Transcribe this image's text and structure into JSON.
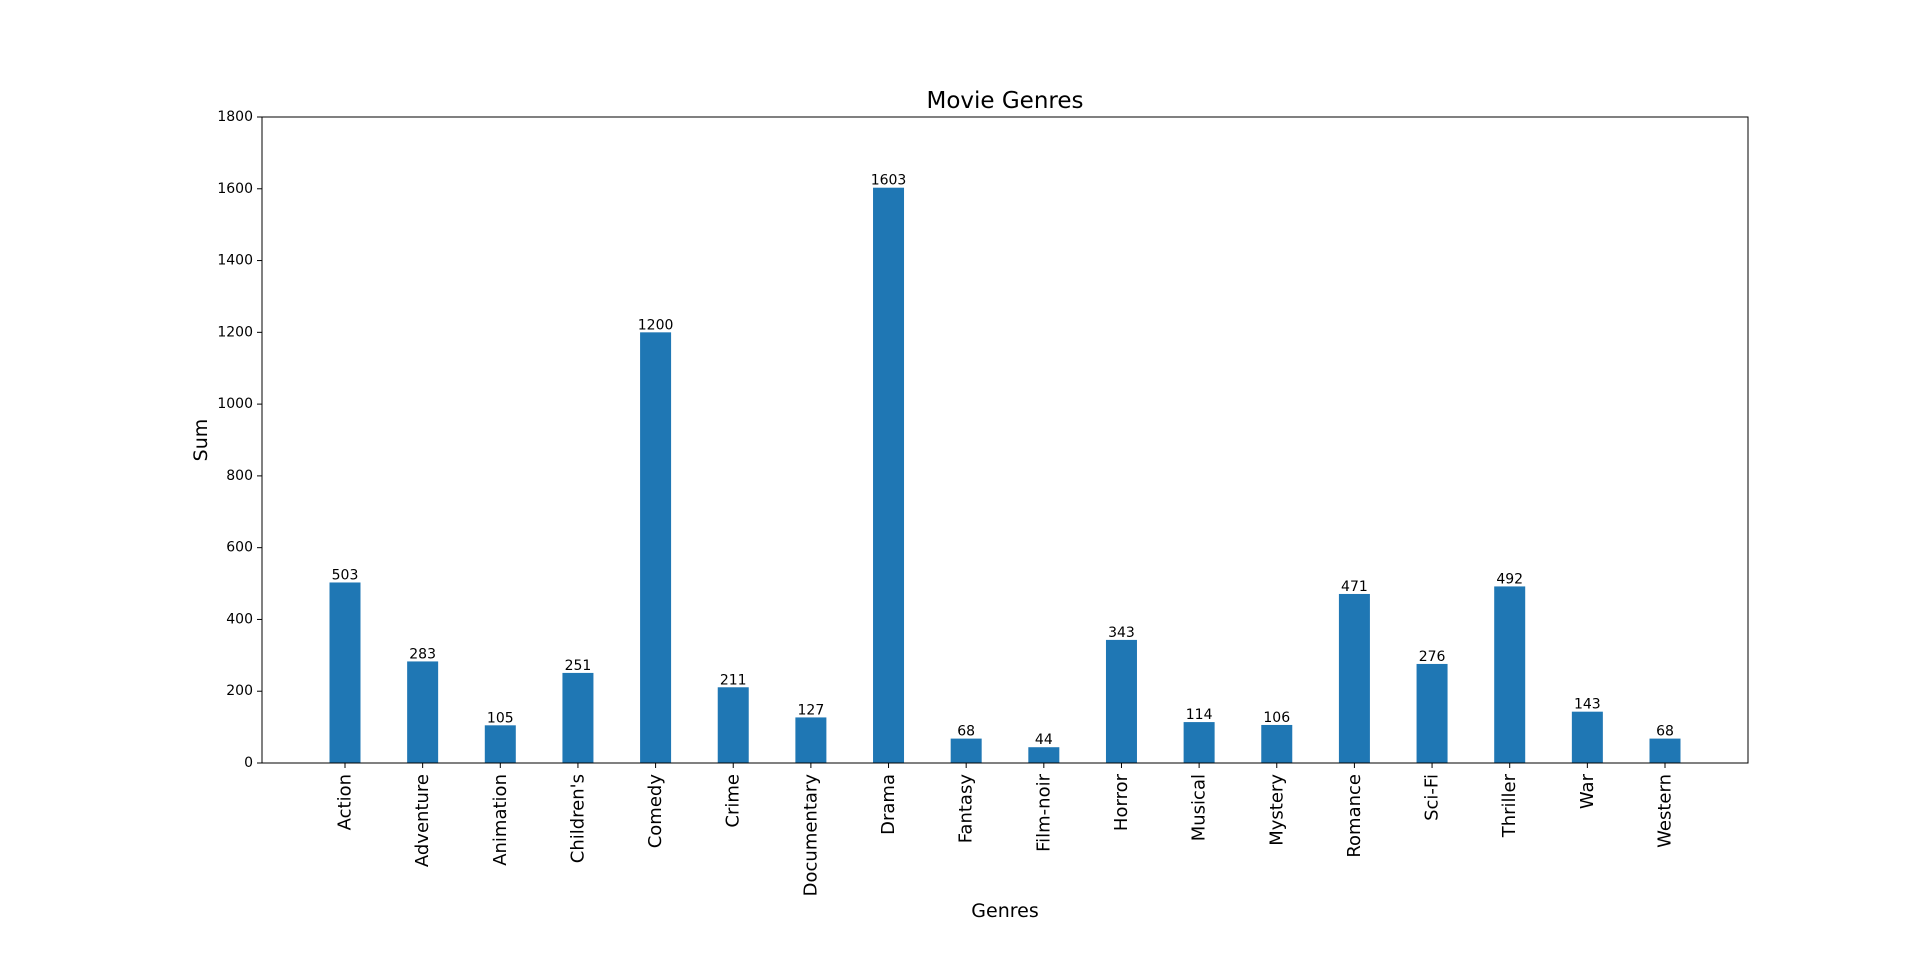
{
  "chart_data": {
    "type": "bar",
    "title": "Movie Genres",
    "xlabel": "Genres",
    "ylabel": "Sum",
    "ylim": [
      0,
      1800
    ],
    "yticks": [
      0,
      200,
      400,
      600,
      800,
      1000,
      1200,
      1400,
      1600,
      1800
    ],
    "categories": [
      "Action",
      "Adventure",
      "Animation",
      "Children's",
      "Comedy",
      "Crime",
      "Documentary",
      "Drama",
      "Fantasy",
      "Film-noir",
      "Horror",
      "Musical",
      "Mystery",
      "Romance",
      "Sci-Fi",
      "Thriller",
      "War",
      "Western"
    ],
    "values": [
      503,
      283,
      105,
      251,
      1200,
      211,
      127,
      1603,
      68,
      44,
      343,
      114,
      106,
      471,
      276,
      492,
      143,
      68
    ],
    "bar_color": "#1f77b4",
    "grid": false,
    "legend": "none"
  }
}
